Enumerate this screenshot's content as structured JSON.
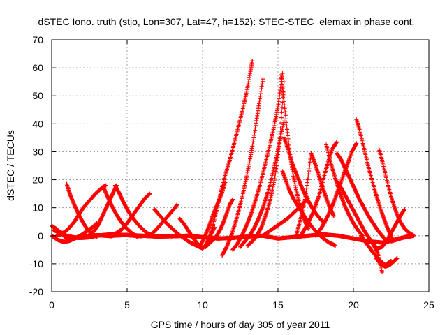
{
  "chart_data": {
    "type": "scatter",
    "title": "dSTEC Iono. truth (stjo, Lon=307, Lat=47, h=152): STEC-STEC_elemax in phase cont.",
    "xlabel": "GPS time / hours of day 305 of year 2011",
    "ylabel": "dSTEC  / TECUs",
    "xlim": [
      0,
      25
    ],
    "ylim": [
      -20,
      70
    ],
    "xticks": [
      0,
      5,
      10,
      15,
      20,
      25
    ],
    "yticks": [
      -20,
      -10,
      0,
      10,
      20,
      30,
      40,
      50,
      60,
      70
    ],
    "grid": true,
    "legend": "none",
    "marker": "+",
    "series_color": "#ff0000",
    "series": [
      {
        "x": [
          0.0,
          0.3,
          0.6,
          0.9,
          1.2,
          1.5,
          1.8,
          2.1,
          2.4,
          2.7,
          3.0,
          3.3,
          3.6,
          4.0
        ],
        "y": [
          3.5,
          2.5,
          1.0,
          -0.5,
          -1.2,
          -1.0,
          -0.5,
          -0.3,
          -0.2,
          0.0,
          0.2,
          0.1,
          0.0,
          -0.2
        ]
      },
      {
        "x": [
          0.0,
          0.4,
          0.8,
          1.2,
          1.5,
          1.9,
          2.3,
          2.7,
          3.0
        ],
        "y": [
          0.0,
          -1.5,
          -2.2,
          -1.8,
          -1.0,
          0.0,
          1.5,
          3.0,
          4.5
        ]
      },
      {
        "x": [
          0.1,
          0.4,
          0.7,
          1.0,
          1.4,
          1.8,
          2.2,
          2.6,
          3.0,
          3.5,
          4.0,
          4.5,
          5.0,
          5.5,
          6.0
        ],
        "y": [
          2.0,
          1.5,
          1.0,
          0.0,
          -0.5,
          -0.8,
          -0.7,
          -0.5,
          0.0,
          0.3,
          0.5,
          0.4,
          0.2,
          0.0,
          -0.2
        ]
      },
      {
        "x": [
          1.0,
          1.2,
          1.5,
          1.8,
          2.1,
          2.4,
          2.7,
          3.0
        ],
        "y": [
          18.5,
          15.0,
          11.0,
          7.5,
          4.5,
          2.0,
          0.5,
          -0.3
        ]
      },
      {
        "x": [
          0.3,
          0.6,
          0.9,
          1.2,
          1.5,
          1.8,
          2.1,
          2.5,
          2.9,
          3.3,
          3.6
        ],
        "y": [
          0.0,
          0.5,
          1.5,
          3.0,
          5.0,
          7.5,
          10.0,
          12.5,
          15.0,
          17.0,
          18.0
        ]
      },
      {
        "x": [
          3.4,
          3.7,
          4.0,
          4.3,
          4.6,
          4.9,
          5.3,
          5.7
        ],
        "y": [
          17.8,
          14.0,
          10.5,
          7.5,
          5.0,
          3.0,
          1.0,
          -0.5
        ]
      },
      {
        "x": [
          2.5,
          2.8,
          3.1,
          3.4,
          3.7,
          4.0,
          4.3
        ],
        "y": [
          0.5,
          1.5,
          4.0,
          7.5,
          11.0,
          14.5,
          18.0
        ]
      },
      {
        "x": [
          4.0,
          4.3,
          4.7,
          5.0,
          5.4,
          5.8,
          6.2,
          6.5
        ],
        "y": [
          0.0,
          1.0,
          2.5,
          4.5,
          7.5,
          10.5,
          13.5,
          15.0
        ]
      },
      {
        "x": [
          4.2,
          4.5,
          4.8,
          5.1,
          5.5,
          5.9,
          6.3,
          6.7
        ],
        "y": [
          18.0,
          15.0,
          11.5,
          8.5,
          5.5,
          3.0,
          1.0,
          0.0
        ]
      },
      {
        "x": [
          6.8,
          7.2,
          7.6,
          8.0,
          8.4,
          8.8,
          9.2,
          9.6,
          10.0
        ],
        "y": [
          9.5,
          7.0,
          4.5,
          2.5,
          0.5,
          -1.0,
          -2.5,
          -3.5,
          -4.5
        ]
      },
      {
        "x": [
          6.5,
          6.9,
          7.3,
          7.7,
          8.1,
          8.3
        ],
        "y": [
          0.0,
          2.0,
          4.5,
          7.0,
          9.5,
          11.0
        ]
      },
      {
        "x": [
          4.0,
          5.0,
          6.0,
          7.0,
          8.0,
          9.0,
          10.0,
          11.0,
          12.0,
          13.0,
          14.0
        ],
        "y": [
          0.0,
          0.3,
          0.0,
          -0.3,
          -0.2,
          0.0,
          -0.5,
          -1.0,
          -0.8,
          -0.3,
          0.0
        ]
      },
      {
        "x": [
          8.5,
          8.8,
          9.1,
          9.4,
          9.7,
          10.0,
          10.2,
          10.4,
          10.6,
          10.8
        ],
        "y": [
          6.0,
          4.0,
          1.5,
          -1.0,
          -3.0,
          -4.5,
          -3.5,
          -1.0,
          1.0,
          3.0
        ]
      },
      {
        "x": [
          9.8,
          10.1,
          10.4,
          10.7,
          11.0,
          11.3,
          11.5
        ],
        "y": [
          -4.0,
          -1.0,
          3.0,
          7.5,
          11.5,
          15.5,
          19.0
        ]
      },
      {
        "x": [
          10.2,
          10.4,
          10.6,
          10.8,
          11.0,
          11.2,
          11.4,
          11.6,
          11.8,
          12.0
        ],
        "y": [
          -4.0,
          -3.0,
          -2.0,
          -1.0,
          0.5,
          2.5,
          5.0,
          8.0,
          11.0,
          13.0
        ]
      },
      {
        "x": [
          10.3,
          10.5,
          10.7,
          10.9,
          11.1,
          11.3,
          11.5,
          11.8,
          12.1,
          12.4,
          12.7,
          13.0,
          13.3
        ],
        "y": [
          -3.0,
          0.0,
          4.0,
          8.5,
          13.0,
          17.5,
          21.5,
          27.0,
          33.0,
          39.5,
          46.0,
          53.5,
          62.5
        ]
      },
      {
        "x": [
          11.3,
          11.6,
          11.9,
          12.2,
          12.5,
          12.8,
          13.1,
          13.4,
          13.7,
          14.0
        ],
        "y": [
          -7.0,
          -4.0,
          0.0,
          5.0,
          11.0,
          18.0,
          26.0,
          35.0,
          45.5,
          56.0
        ]
      },
      {
        "x": [
          12.0,
          12.3,
          12.6,
          12.9,
          13.2,
          13.5,
          13.8,
          14.1,
          14.4,
          14.7,
          15.0,
          15.3
        ],
        "y": [
          -5.0,
          -3.0,
          0.0,
          3.5,
          7.5,
          12.5,
          18.0,
          24.5,
          31.0,
          38.0,
          46.0,
          58.0
        ]
      },
      {
        "x": [
          12.5,
          12.8,
          13.1,
          13.4,
          13.7,
          14.0,
          14.3,
          14.6,
          14.9,
          15.2,
          15.4
        ],
        "y": [
          -4.0,
          -2.0,
          0.0,
          2.5,
          6.0,
          10.0,
          15.0,
          21.0,
          28.0,
          36.0,
          41.0
        ]
      },
      {
        "x": [
          13.0,
          13.3,
          13.6,
          13.9,
          14.2,
          14.5,
          14.8,
          15.1,
          15.4
        ],
        "y": [
          -3.5,
          -2.0,
          0.0,
          3.0,
          7.5,
          13.0,
          21.0,
          33.0,
          55.0
        ]
      },
      {
        "x": [
          15.2,
          15.4,
          15.6,
          15.8,
          16.0,
          16.2,
          16.4,
          16.6,
          16.8,
          17.0
        ],
        "y": [
          57.5,
          48.0,
          38.0,
          29.0,
          22.0,
          16.5,
          12.0,
          8.0,
          5.0,
          2.5
        ]
      },
      {
        "x": [
          15.4,
          15.6,
          15.8,
          16.0,
          16.3,
          16.6,
          16.9,
          17.2,
          17.5,
          17.8,
          18.1
        ],
        "y": [
          35.0,
          32.0,
          28.5,
          25.0,
          21.0,
          17.0,
          13.5,
          10.5,
          8.0,
          6.0,
          4.5
        ]
      },
      {
        "x": [
          15.3,
          15.5,
          15.7,
          16.0,
          16.4,
          16.8,
          17.2,
          17.6,
          18.0,
          18.4,
          18.8
        ],
        "y": [
          23.0,
          20.0,
          17.0,
          13.5,
          10.0,
          6.5,
          3.5,
          1.0,
          -1.0,
          -2.5,
          -3.5
        ]
      },
      {
        "x": [
          14.0,
          14.4,
          14.8,
          15.2,
          15.6,
          16.0,
          16.5,
          17.0
        ],
        "y": [
          0.0,
          1.5,
          3.0,
          4.5,
          6.0,
          8.0,
          10.5,
          13.5
        ]
      },
      {
        "x": [
          16.2,
          16.5,
          16.8,
          17.0,
          17.2,
          17.5,
          17.8,
          18.1,
          18.4,
          18.7
        ],
        "y": [
          0.0,
          6.0,
          13.0,
          21.0,
          29.5,
          25.0,
          20.0,
          15.0,
          10.5,
          7.0
        ]
      },
      {
        "x": [
          16.5,
          16.9,
          17.3,
          17.7,
          18.0,
          18.3,
          18.6,
          18.9
        ],
        "y": [
          0.0,
          3.5,
          8.0,
          14.0,
          20.0,
          26.0,
          31.0,
          33.5
        ]
      },
      {
        "x": [
          18.2,
          18.5,
          18.8,
          19.1,
          19.4,
          19.7,
          20.0,
          20.3,
          20.6
        ],
        "y": [
          32.5,
          26.0,
          20.5,
          15.5,
          11.0,
          7.5,
          4.5,
          2.0,
          0.0
        ]
      },
      {
        "x": [
          18.9,
          19.2,
          19.5,
          19.8,
          20.1,
          20.4,
          20.7,
          21.0,
          21.3,
          21.6,
          21.9,
          22.2
        ],
        "y": [
          29.5,
          27.0,
          23.5,
          20.0,
          16.5,
          13.0,
          10.0,
          7.0,
          4.5,
          2.0,
          0.0,
          -2.0
        ]
      },
      {
        "x": [
          17.5,
          17.9,
          18.3,
          18.7,
          19.1,
          19.5,
          19.9,
          20.2
        ],
        "y": [
          0.0,
          3.0,
          7.0,
          12.0,
          18.0,
          24.0,
          30.0,
          33.0
        ]
      },
      {
        "x": [
          18.9,
          19.2,
          19.5,
          19.8,
          20.1,
          20.4,
          20.7,
          21.0,
          21.3,
          21.6,
          21.9
        ],
        "y": [
          19.5,
          17.0,
          14.0,
          11.0,
          8.0,
          5.0,
          2.0,
          -0.5,
          -3.0,
          -6.0,
          -13.0
        ]
      },
      {
        "x": [
          20.2,
          20.4,
          20.6,
          20.8,
          21.0,
          21.2,
          21.4,
          21.6,
          21.8,
          22.0,
          22.2,
          22.4,
          22.6
        ],
        "y": [
          41.5,
          38.0,
          33.5,
          29.0,
          24.5,
          20.5,
          16.5,
          13.0,
          9.5,
          6.5,
          3.5,
          1.0,
          -1.5
        ]
      },
      {
        "x": [
          21.0,
          21.3,
          21.6,
          21.9,
          22.2,
          22.5,
          22.8,
          23.1,
          23.4
        ],
        "y": [
          -1.0,
          -3.0,
          -4.5,
          -4.0,
          -2.0,
          1.0,
          4.0,
          7.0,
          9.5
        ]
      },
      {
        "x": [
          21.7,
          21.9,
          22.1,
          22.3,
          22.5,
          22.7,
          22.9,
          23.1,
          23.4,
          23.7,
          24.0
        ],
        "y": [
          31.0,
          27.0,
          22.5,
          18.0,
          14.0,
          10.5,
          7.5,
          5.0,
          2.5,
          1.0,
          0.0
        ]
      },
      {
        "x": [
          20.5,
          20.9,
          21.3,
          21.7,
          22.1,
          22.5
        ],
        "y": [
          0.0,
          -3.0,
          -6.0,
          -8.5,
          -10.5,
          -9.0
        ]
      },
      {
        "x": [
          21.5,
          21.8,
          22.1,
          22.4,
          22.7,
          22.9
        ],
        "y": [
          -8.0,
          -10.0,
          -11.0,
          -10.5,
          -9.0,
          -8.0
        ]
      },
      {
        "x": [
          22.5,
          22.8,
          23.1,
          23.4,
          23.7,
          24.0
        ],
        "y": [
          -2.0,
          -1.5,
          -1.0,
          -0.5,
          0.0,
          0.0
        ]
      },
      {
        "x": [
          14.0,
          15.0,
          16.0,
          17.0,
          18.0,
          19.0,
          20.0,
          21.0,
          22.0,
          23.0,
          24.0
        ],
        "y": [
          0.0,
          -1.0,
          -0.5,
          0.0,
          0.5,
          0.0,
          -1.0,
          -2.0,
          -2.5,
          -1.0,
          0.0
        ]
      }
    ]
  }
}
